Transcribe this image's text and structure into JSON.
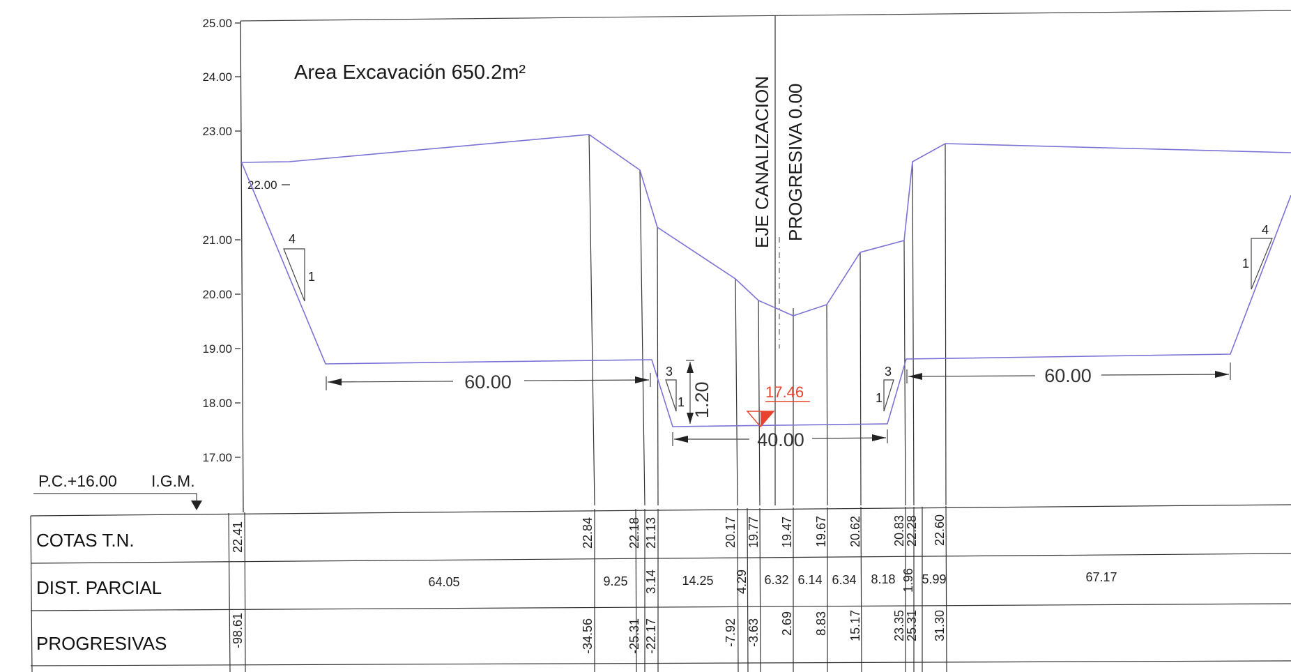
{
  "title": "Area Excavación  650.2m²",
  "axis": {
    "ticks": [
      "25.00",
      "24.00",
      "23.00",
      "21.00",
      "20.00",
      "19.00",
      "18.00",
      "17.00"
    ],
    "inner_label": "22.00"
  },
  "reference": {
    "pc": "P.C.+16.00",
    "igm": "I.G.M."
  },
  "center_axis": {
    "label1": "EJE  CANALIZACION",
    "label2": "PROGRESIVA  0.00"
  },
  "water_level": {
    "value": "17.46",
    "color": "#e8432c"
  },
  "slopes": {
    "left_outer": {
      "h": "4",
      "v": "1"
    },
    "left_inner": {
      "h": "3",
      "v": "1"
    },
    "right_inner": {
      "h": "3",
      "v": "1"
    },
    "right_outer": {
      "h": "4",
      "v": "1"
    }
  },
  "dimensions": {
    "left_berm": "60.00",
    "right_berm": "60.00",
    "bottom_width": "40.00",
    "depth": "1.20"
  },
  "rows": {
    "cotas": {
      "label": "COTAS T.N.",
      "values": [
        "22.41",
        "22.84",
        "22.18",
        "21.13",
        "20.17",
        "19.77",
        "19.47",
        "19.67",
        "20.62",
        "20.83",
        "22.28",
        "22.60"
      ]
    },
    "dist": {
      "label": "DIST. PARCIAL",
      "values": [
        "64.05",
        "9.25",
        "3.14",
        "14.25",
        "4.29",
        "6.32",
        "6.14",
        "6.34",
        "8.18",
        "1.96",
        "5.99",
        "67.17"
      ]
    },
    "prog": {
      "label": "PROGRESIVAS",
      "values": [
        "-98.61",
        "-34.56",
        "-25.31",
        "-22.17",
        "-7.92",
        "-3.63",
        "2.69",
        "8.83",
        "15.17",
        "23.35",
        "25.31",
        "31.30"
      ]
    }
  },
  "colors": {
    "profile": "#7b72d6",
    "ink": "#222222"
  }
}
